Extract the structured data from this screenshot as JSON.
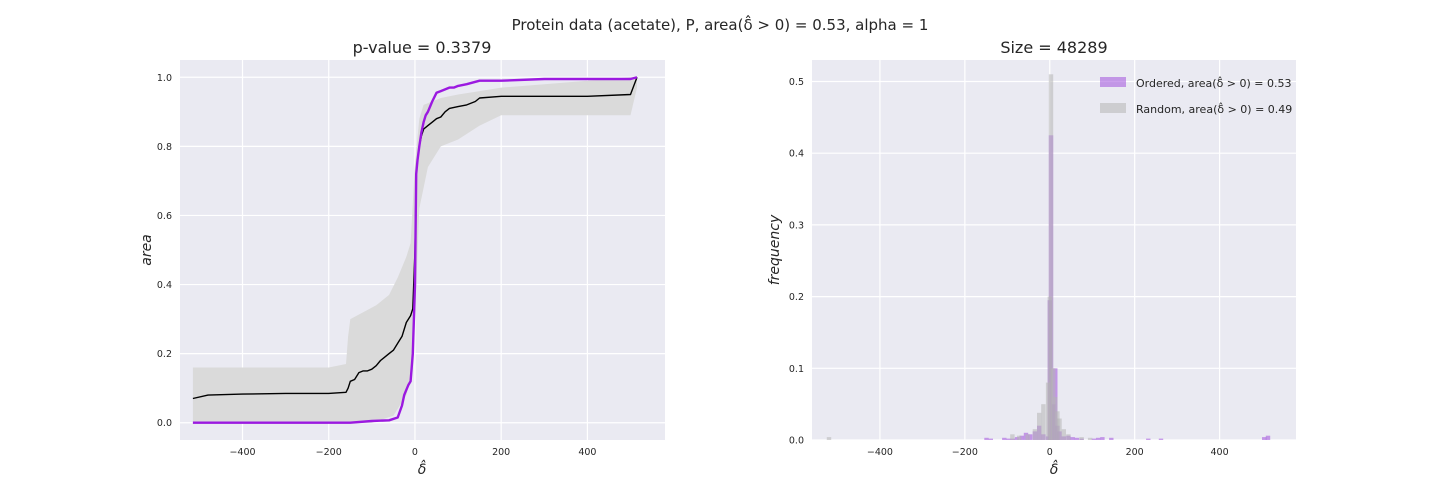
{
  "figure": {
    "suptitle": "Protein data (acetate), P, area(δ̂ > 0) = 0.53, alpha = 1"
  },
  "chart_data": [
    {
      "type": "line",
      "title": "p-value = 0.3379",
      "xlabel": "δ̂",
      "ylabel": "area",
      "xlim": [
        -545,
        580
      ],
      "ylim": [
        -0.05,
        1.05
      ],
      "xticks": [
        -400,
        -200,
        0,
        200,
        400
      ],
      "yticks": [
        0.0,
        0.2,
        0.4,
        0.6,
        0.8,
        1.0
      ],
      "xtick_labels": [
        "−400",
        "−200",
        "0",
        "200",
        "400"
      ],
      "ytick_labels": [
        "0.0",
        "0.2",
        "0.4",
        "0.6",
        "0.8",
        "1.0"
      ],
      "grid": true,
      "series": [
        {
          "role": "ordered",
          "color": "#9b19e0",
          "x": [
            -515,
            -150,
            -100,
            -60,
            -40,
            -30,
            -25,
            -20,
            -15,
            -10,
            -5,
            0,
            3,
            6,
            10,
            15,
            20,
            25,
            30,
            40,
            50,
            60,
            70,
            80,
            90,
            100,
            120,
            150,
            200,
            300,
            400,
            500,
            515
          ],
          "y": [
            0.0,
            0.0,
            0.005,
            0.007,
            0.015,
            0.05,
            0.08,
            0.095,
            0.11,
            0.12,
            0.2,
            0.4,
            0.72,
            0.76,
            0.8,
            0.84,
            0.87,
            0.89,
            0.9,
            0.93,
            0.955,
            0.96,
            0.965,
            0.97,
            0.97,
            0.975,
            0.98,
            0.99,
            0.99,
            0.995,
            0.995,
            0.995,
            1.0
          ]
        },
        {
          "role": "random-mean",
          "color": "#000000",
          "x": [
            -515,
            -480,
            -400,
            -300,
            -200,
            -160,
            -155,
            -150,
            -140,
            -130,
            -120,
            -110,
            -100,
            -90,
            -80,
            -70,
            -60,
            -50,
            -40,
            -30,
            -20,
            -10,
            -5,
            0,
            3,
            6,
            10,
            15,
            20,
            30,
            40,
            50,
            60,
            70,
            80,
            100,
            120,
            140,
            150,
            200,
            300,
            400,
            500,
            515
          ],
          "y": [
            0.07,
            0.08,
            0.083,
            0.085,
            0.085,
            0.088,
            0.1,
            0.12,
            0.125,
            0.145,
            0.15,
            0.15,
            0.155,
            0.165,
            0.18,
            0.19,
            0.2,
            0.21,
            0.23,
            0.25,
            0.29,
            0.31,
            0.33,
            0.5,
            0.72,
            0.76,
            0.8,
            0.83,
            0.85,
            0.86,
            0.87,
            0.88,
            0.885,
            0.9,
            0.91,
            0.915,
            0.92,
            0.93,
            0.94,
            0.945,
            0.945,
            0.945,
            0.95,
            1.0
          ]
        },
        {
          "role": "random-band-lower",
          "color": "#dadada",
          "x": [
            -515,
            -200,
            -150,
            -100,
            -50,
            -20,
            -5,
            0,
            10,
            30,
            60,
            100,
            150,
            200,
            300,
            400,
            500,
            515
          ],
          "y": [
            0.0,
            0.0,
            0.0,
            0.0,
            0.02,
            0.08,
            0.15,
            0.3,
            0.62,
            0.74,
            0.8,
            0.82,
            0.86,
            0.89,
            0.89,
            0.89,
            0.89,
            0.97
          ]
        },
        {
          "role": "random-band-upper",
          "color": "#dadada",
          "x": [
            -515,
            -200,
            -160,
            -155,
            -150,
            -120,
            -90,
            -60,
            -40,
            -20,
            -10,
            0,
            10,
            20,
            40,
            60,
            100,
            150,
            200,
            300,
            400,
            500,
            515
          ],
          "y": [
            0.16,
            0.16,
            0.17,
            0.25,
            0.3,
            0.32,
            0.34,
            0.37,
            0.42,
            0.48,
            0.52,
            0.75,
            0.88,
            0.92,
            0.93,
            0.94,
            0.95,
            0.96,
            0.97,
            0.98,
            0.99,
            1.0,
            1.0
          ]
        }
      ]
    },
    {
      "type": "histogram",
      "title": "Size = 48289",
      "xlabel": "δ̂",
      "ylabel": "frequency",
      "xlim": [
        -560,
        580
      ],
      "ylim": [
        0.0,
        0.53
      ],
      "xticks": [
        -400,
        -200,
        0,
        200,
        400
      ],
      "yticks": [
        0.0,
        0.1,
        0.2,
        0.3,
        0.4,
        0.5
      ],
      "xtick_labels": [
        "−400",
        "−200",
        "0",
        "200",
        "400"
      ],
      "ytick_labels": [
        "0.0",
        "0.1",
        "0.2",
        "0.3",
        "0.4",
        "0.5"
      ],
      "grid": true,
      "legend": {
        "placement": "top-right"
      },
      "bin_width": 10.3,
      "series": [
        {
          "name": "Ordered, area(δ̂ > 0) = 0.53",
          "color": "#a050dc",
          "bins": [
            [
              -149,
              0.003
            ],
            [
              -139,
              0.002
            ],
            [
              -107,
              0.003
            ],
            [
              -97,
              0.002
            ],
            [
              -87,
              0.002
            ],
            [
              -77,
              0.004
            ],
            [
              -66,
              0.006
            ],
            [
              -56,
              0.01
            ],
            [
              -46,
              0.008
            ],
            [
              -35,
              0.012
            ],
            [
              -25,
              0.02
            ],
            [
              -15,
              0.008
            ],
            [
              -4,
              0.005
            ],
            [
              0,
              0.195
            ],
            [
              3,
              0.425
            ],
            [
              8,
              0.05
            ],
            [
              13,
              0.1
            ],
            [
              18,
              0.02
            ],
            [
              23,
              0.012
            ],
            [
              33,
              0.005
            ],
            [
              44,
              0.006
            ],
            [
              54,
              0.004
            ],
            [
              64,
              0.003
            ],
            [
              75,
              0.002
            ],
            [
              104,
              0.002
            ],
            [
              114,
              0.003
            ],
            [
              124,
              0.004
            ],
            [
              145,
              0.003
            ],
            [
              232,
              0.002
            ],
            [
              262,
              0.002
            ],
            [
              505,
              0.004
            ],
            [
              514,
              0.006
            ]
          ]
        },
        {
          "name": "Random, area(δ̂ > 0) = 0.49",
          "color": "#b4b4b4",
          "bins": [
            [
              -520,
              0.004
            ],
            [
              -88,
              0.008
            ],
            [
              -72,
              0.006
            ],
            [
              -52,
              0.008
            ],
            [
              -35,
              0.015
            ],
            [
              -25,
              0.038
            ],
            [
              -15,
              0.05
            ],
            [
              -4,
              0.08
            ],
            [
              0,
              0.2
            ],
            [
              3,
              0.51
            ],
            [
              8,
              0.1
            ],
            [
              13,
              0.06
            ],
            [
              18,
              0.04
            ],
            [
              23,
              0.03
            ],
            [
              33,
              0.015
            ],
            [
              44,
              0.008
            ],
            [
              75,
              0.004
            ],
            [
              95,
              0.003
            ]
          ]
        }
      ]
    }
  ]
}
